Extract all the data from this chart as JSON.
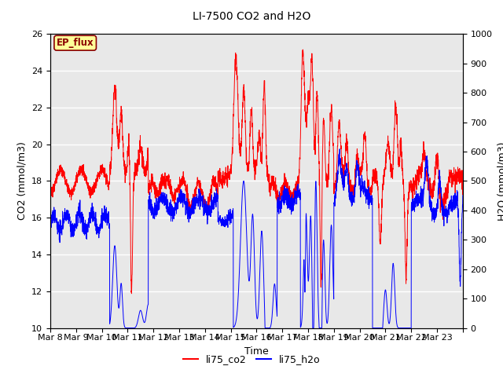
{
  "title": "LI-7500 CO2 and H2O",
  "xlabel": "Time",
  "ylabel_left": "CO2 (mmol/m3)",
  "ylabel_right": "H2O (mmol/m3)",
  "ylim_left": [
    10,
    26
  ],
  "ylim_right": [
    0,
    1000
  ],
  "yticks_left": [
    10,
    12,
    14,
    16,
    18,
    20,
    22,
    24,
    26
  ],
  "yticks_right": [
    0,
    100,
    200,
    300,
    400,
    500,
    600,
    700,
    800,
    900,
    1000
  ],
  "plot_bg_color": "#e8e8e8",
  "annotation_text": "EP_flux",
  "annotation_color": "#8B0000",
  "annotation_bg": "#FFFF99",
  "line_co2_color": "#FF0000",
  "line_h2o_color": "#0000FF",
  "legend_labels": [
    "li75_co2",
    "li75_h2o"
  ],
  "n_points": 3000,
  "x_start": 7.0,
  "x_end": 23.0,
  "xtick_positions": [
    7,
    8,
    9,
    10,
    11,
    12,
    13,
    14,
    15,
    16,
    17,
    18,
    19,
    20,
    21,
    22,
    23
  ],
  "xtick_labels": [
    "Mar 8",
    "Mar 9",
    "Mar 10",
    "Mar 11",
    "Mar 12",
    "Mar 13",
    "Mar 14",
    "Mar 15",
    "Mar 16",
    "Mar 17",
    "Mar 18",
    "Mar 19",
    "Mar 20",
    "Mar 21",
    "Mar 22",
    "Mar 23",
    ""
  ]
}
